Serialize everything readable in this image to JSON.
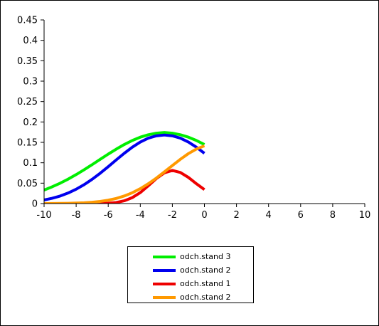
{
  "chart_data": {
    "type": "line",
    "title": "",
    "xlabel": "",
    "ylabel": "",
    "xlim": [
      -10,
      10
    ],
    "ylim": [
      0,
      0.45
    ],
    "x_ticks": [
      "-10",
      "-8",
      "-6",
      "-4",
      "-2",
      "0",
      "2",
      "4",
      "6",
      "8",
      "10"
    ],
    "y_ticks": [
      "0",
      "0.05",
      "0.1",
      "0.15",
      "0.2",
      "0.25",
      "0.3",
      "0.35",
      "0.4",
      "0.45"
    ],
    "grid": false,
    "legend_position": "bottom",
    "series": [
      {
        "name": "odch.stand 3",
        "color": "#00ee00",
        "mean": 0,
        "sd": 3,
        "x_step": 0.5,
        "y": [
          0.0332,
          0.041,
          0.0499,
          0.0599,
          0.071,
          0.0829,
          0.0955,
          0.1084,
          0.1212,
          0.1334,
          0.1447,
          0.1546,
          0.1627,
          0.1687,
          0.1725,
          0.1741,
          0.1725,
          0.1687,
          0.1627,
          0.1546,
          0.1447
        ]
      },
      {
        "name": "odch.stand 2",
        "color": "#0000ee",
        "mean": 0,
        "sd": 2,
        "x_step": 0.5,
        "y": [
          0.0088,
          0.013,
          0.0185,
          0.0259,
          0.0352,
          0.0464,
          0.0596,
          0.0744,
          0.0904,
          0.107,
          0.1232,
          0.1381,
          0.1508,
          0.1603,
          0.166,
          0.168,
          0.166,
          0.1603,
          0.1508,
          0.1381,
          0.1232
        ]
      },
      {
        "name": "odch.stand 1",
        "color": "#ee0000",
        "mean": 0,
        "sd": 1,
        "x_step": 0.5,
        "y": [
          0.0,
          0.0,
          0.0,
          0.0,
          0.0,
          0.0,
          0.0001,
          0.0003,
          0.0009,
          0.0027,
          0.0068,
          0.0146,
          0.0269,
          0.0436,
          0.0612,
          0.0753,
          0.0812,
          0.0762,
          0.0641,
          0.0486,
          0.0343
        ]
      },
      {
        "name": "odch.stand 2",
        "color": "#ff9900",
        "mean": 2,
        "sd": 2,
        "x_step": 0.5,
        "y": [
          0.0001,
          0.0002,
          0.0004,
          0.0007,
          0.0012,
          0.002,
          0.0033,
          0.0053,
          0.0083,
          0.0126,
          0.0186,
          0.0265,
          0.0366,
          0.0486,
          0.0624,
          0.0776,
          0.0932,
          0.1085,
          0.1224,
          0.1337,
          0.1416
        ]
      }
    ]
  }
}
